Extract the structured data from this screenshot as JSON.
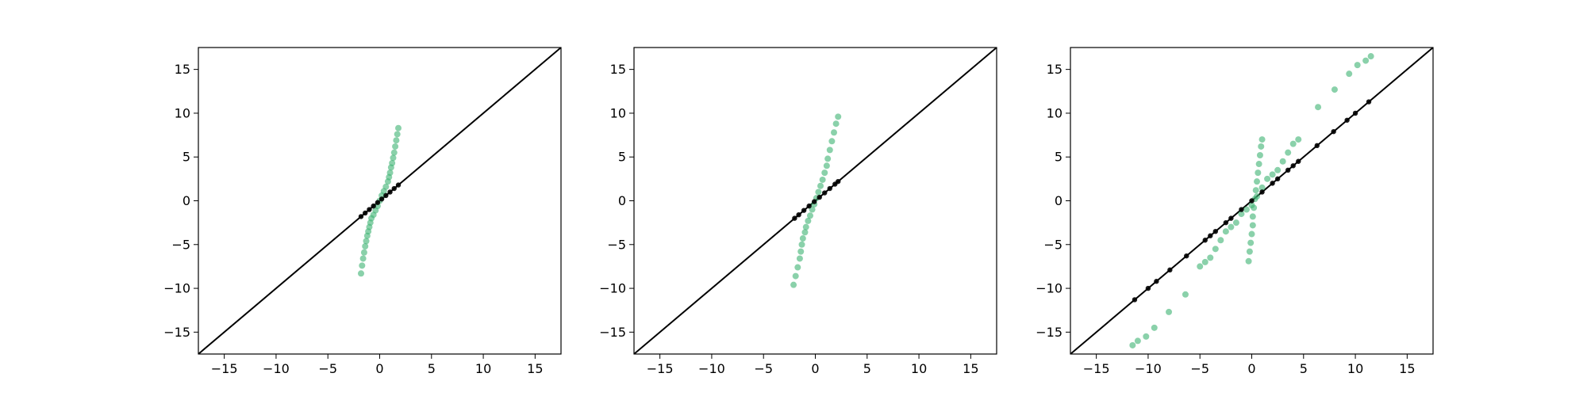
{
  "chart_data": [
    {
      "type": "scatter",
      "xlim": [
        -17.5,
        17.5
      ],
      "ylim": [
        -17.5,
        17.5
      ],
      "xticks": [
        "−15",
        "−10",
        "−5",
        "0",
        "5",
        "10",
        "15"
      ],
      "yticks": [
        "15",
        "10",
        "5",
        "0",
        "−5",
        "−10",
        "−15"
      ],
      "xtick_values": [
        -15,
        -10,
        -5,
        0,
        5,
        10,
        15
      ],
      "ytick_values": [
        15,
        10,
        5,
        0,
        -5,
        -10,
        -15
      ],
      "grid": false,
      "reference_line": "y = x",
      "series": [
        {
          "color": "#3cb371",
          "points": [
            [
              -1.8,
              -8.3
            ],
            [
              -1.7,
              -7.4
            ],
            [
              -1.6,
              -6.6
            ],
            [
              -1.5,
              -5.9
            ],
            [
              -1.4,
              -5.2
            ],
            [
              -1.3,
              -4.6
            ],
            [
              -1.2,
              -4.0
            ],
            [
              -1.1,
              -3.5
            ],
            [
              -1.0,
              -3.0
            ],
            [
              -0.9,
              -2.5
            ],
            [
              -0.8,
              -2.0
            ],
            [
              -0.6,
              -1.6
            ],
            [
              -0.4,
              -1.1
            ],
            [
              -0.2,
              -0.6
            ],
            [
              0.0,
              0.0
            ],
            [
              0.2,
              0.6
            ],
            [
              0.4,
              1.1
            ],
            [
              0.6,
              1.6
            ],
            [
              0.8,
              2.2
            ],
            [
              0.9,
              2.7
            ],
            [
              1.0,
              3.2
            ],
            [
              1.1,
              3.8
            ],
            [
              1.2,
              4.3
            ],
            [
              1.3,
              4.9
            ],
            [
              1.4,
              5.5
            ],
            [
              1.5,
              6.2
            ],
            [
              1.6,
              6.9
            ],
            [
              1.7,
              7.6
            ],
            [
              1.8,
              8.3
            ]
          ]
        },
        {
          "color": "#000000",
          "points": [
            [
              -1.8,
              -1.8
            ],
            [
              -1.4,
              -1.4
            ],
            [
              -1.0,
              -1.0
            ],
            [
              -0.6,
              -0.6
            ],
            [
              -0.2,
              -0.2
            ],
            [
              0.2,
              0.2
            ],
            [
              0.6,
              0.6
            ],
            [
              1.0,
              1.0
            ],
            [
              1.4,
              1.4
            ],
            [
              1.8,
              1.8
            ]
          ]
        }
      ]
    },
    {
      "type": "scatter",
      "xlim": [
        -17.5,
        17.5
      ],
      "ylim": [
        -17.5,
        17.5
      ],
      "xticks": [
        "−15",
        "−10",
        "−5",
        "0",
        "5",
        "10",
        "15"
      ],
      "yticks": [
        "15",
        "10",
        "5",
        "0",
        "−5",
        "−10",
        "−15"
      ],
      "xtick_values": [
        -15,
        -10,
        -5,
        0,
        5,
        10,
        15
      ],
      "ytick_values": [
        15,
        10,
        5,
        0,
        -5,
        -10,
        -15
      ],
      "grid": false,
      "reference_line": "y = x",
      "series": [
        {
          "color": "#3cb371",
          "points": [
            [
              -2.1,
              -9.6
            ],
            [
              -1.9,
              -8.6
            ],
            [
              -1.7,
              -7.6
            ],
            [
              -1.5,
              -6.6
            ],
            [
              -1.4,
              -5.8
            ],
            [
              -1.3,
              -5.0
            ],
            [
              -1.2,
              -4.3
            ],
            [
              -1.0,
              -3.6
            ],
            [
              -0.9,
              -3.0
            ],
            [
              -0.7,
              -2.3
            ],
            [
              -0.5,
              -1.7
            ],
            [
              -0.3,
              -1.0
            ],
            [
              -0.1,
              -0.4
            ],
            [
              0.1,
              0.3
            ],
            [
              0.3,
              1.0
            ],
            [
              0.5,
              1.7
            ],
            [
              0.7,
              2.4
            ],
            [
              0.9,
              3.2
            ],
            [
              1.1,
              4.0
            ],
            [
              1.2,
              4.8
            ],
            [
              1.4,
              5.8
            ],
            [
              1.6,
              6.8
            ],
            [
              1.8,
              7.8
            ],
            [
              2.0,
              8.8
            ],
            [
              2.2,
              9.6
            ]
          ]
        },
        {
          "color": "#000000",
          "points": [
            [
              -2.0,
              -2.0
            ],
            [
              -1.6,
              -1.6
            ],
            [
              -1.1,
              -1.1
            ],
            [
              -0.6,
              -0.6
            ],
            [
              -0.1,
              -0.1
            ],
            [
              0.4,
              0.4
            ],
            [
              0.9,
              0.9
            ],
            [
              1.4,
              1.4
            ],
            [
              1.9,
              1.9
            ],
            [
              2.2,
              2.2
            ]
          ]
        }
      ]
    },
    {
      "type": "scatter",
      "xlim": [
        -17.5,
        17.5
      ],
      "ylim": [
        -17.5,
        17.5
      ],
      "xticks": [
        "−15",
        "−10",
        "−5",
        "0",
        "5",
        "10",
        "15"
      ],
      "yticks": [
        "15",
        "10",
        "5",
        "0",
        "−5",
        "−10",
        "−15"
      ],
      "xtick_values": [
        -15,
        -10,
        -5,
        0,
        5,
        10,
        15
      ],
      "ytick_values": [
        15,
        10,
        5,
        0,
        -5,
        -10,
        -15
      ],
      "grid": false,
      "reference_line": "y = x",
      "series": [
        {
          "color": "#3cb371",
          "points": [
            [
              -11.5,
              -16.5
            ],
            [
              -11.0,
              -16.0
            ],
            [
              -10.2,
              -15.5
            ],
            [
              -9.4,
              -14.5
            ],
            [
              -8.0,
              -12.7
            ],
            [
              -6.4,
              -10.7
            ],
            [
              -5.0,
              -7.5
            ],
            [
              -4.5,
              -7.0
            ],
            [
              -4.0,
              -6.5
            ],
            [
              -3.5,
              -5.5
            ],
            [
              -3.0,
              -4.5
            ],
            [
              -2.5,
              -3.5
            ],
            [
              -2.0,
              -3.0
            ],
            [
              -1.5,
              -2.5
            ],
            [
              -1.0,
              -1.5
            ],
            [
              -0.5,
              -1.0
            ],
            [
              0.0,
              -0.5
            ],
            [
              0.5,
              0.5
            ],
            [
              1.0,
              1.5
            ],
            [
              1.5,
              2.5
            ],
            [
              2.0,
              3.0
            ],
            [
              2.5,
              3.5
            ],
            [
              3.0,
              4.5
            ],
            [
              3.5,
              5.5
            ],
            [
              4.0,
              6.5
            ],
            [
              4.5,
              7.0
            ],
            [
              6.4,
              10.7
            ],
            [
              8.0,
              12.7
            ],
            [
              9.4,
              14.5
            ],
            [
              10.2,
              15.5
            ],
            [
              11.0,
              16.0
            ],
            [
              11.5,
              16.5
            ],
            [
              -0.3,
              -6.9
            ],
            [
              -0.2,
              -5.8
            ],
            [
              -0.1,
              -4.8
            ],
            [
              0.0,
              -3.8
            ],
            [
              0.1,
              -2.8
            ],
            [
              0.1,
              -1.8
            ],
            [
              0.2,
              -0.8
            ],
            [
              0.3,
              0.2
            ],
            [
              0.4,
              1.2
            ],
            [
              0.5,
              2.2
            ],
            [
              0.6,
              3.2
            ],
            [
              0.7,
              4.2
            ],
            [
              0.8,
              5.2
            ],
            [
              0.9,
              6.2
            ],
            [
              1.0,
              7.0
            ]
          ]
        },
        {
          "color": "#000000",
          "points": [
            [
              -11.3,
              -11.3
            ],
            [
              -10.0,
              -10.0
            ],
            [
              -9.2,
              -9.2
            ],
            [
              -7.9,
              -7.9
            ],
            [
              -6.3,
              -6.3
            ],
            [
              -4.5,
              -4.5
            ],
            [
              -4.0,
              -4.0
            ],
            [
              -3.5,
              -3.5
            ],
            [
              -2.5,
              -2.5
            ],
            [
              -2.0,
              -2.0
            ],
            [
              -1.0,
              -1.0
            ],
            [
              0.0,
              0.0
            ],
            [
              1.0,
              1.0
            ],
            [
              2.0,
              2.0
            ],
            [
              2.5,
              2.5
            ],
            [
              3.5,
              3.5
            ],
            [
              4.0,
              4.0
            ],
            [
              4.5,
              4.5
            ],
            [
              6.3,
              6.3
            ],
            [
              7.9,
              7.9
            ],
            [
              9.2,
              9.2
            ],
            [
              10.0,
              10.0
            ],
            [
              11.3,
              11.3
            ]
          ]
        }
      ]
    }
  ]
}
